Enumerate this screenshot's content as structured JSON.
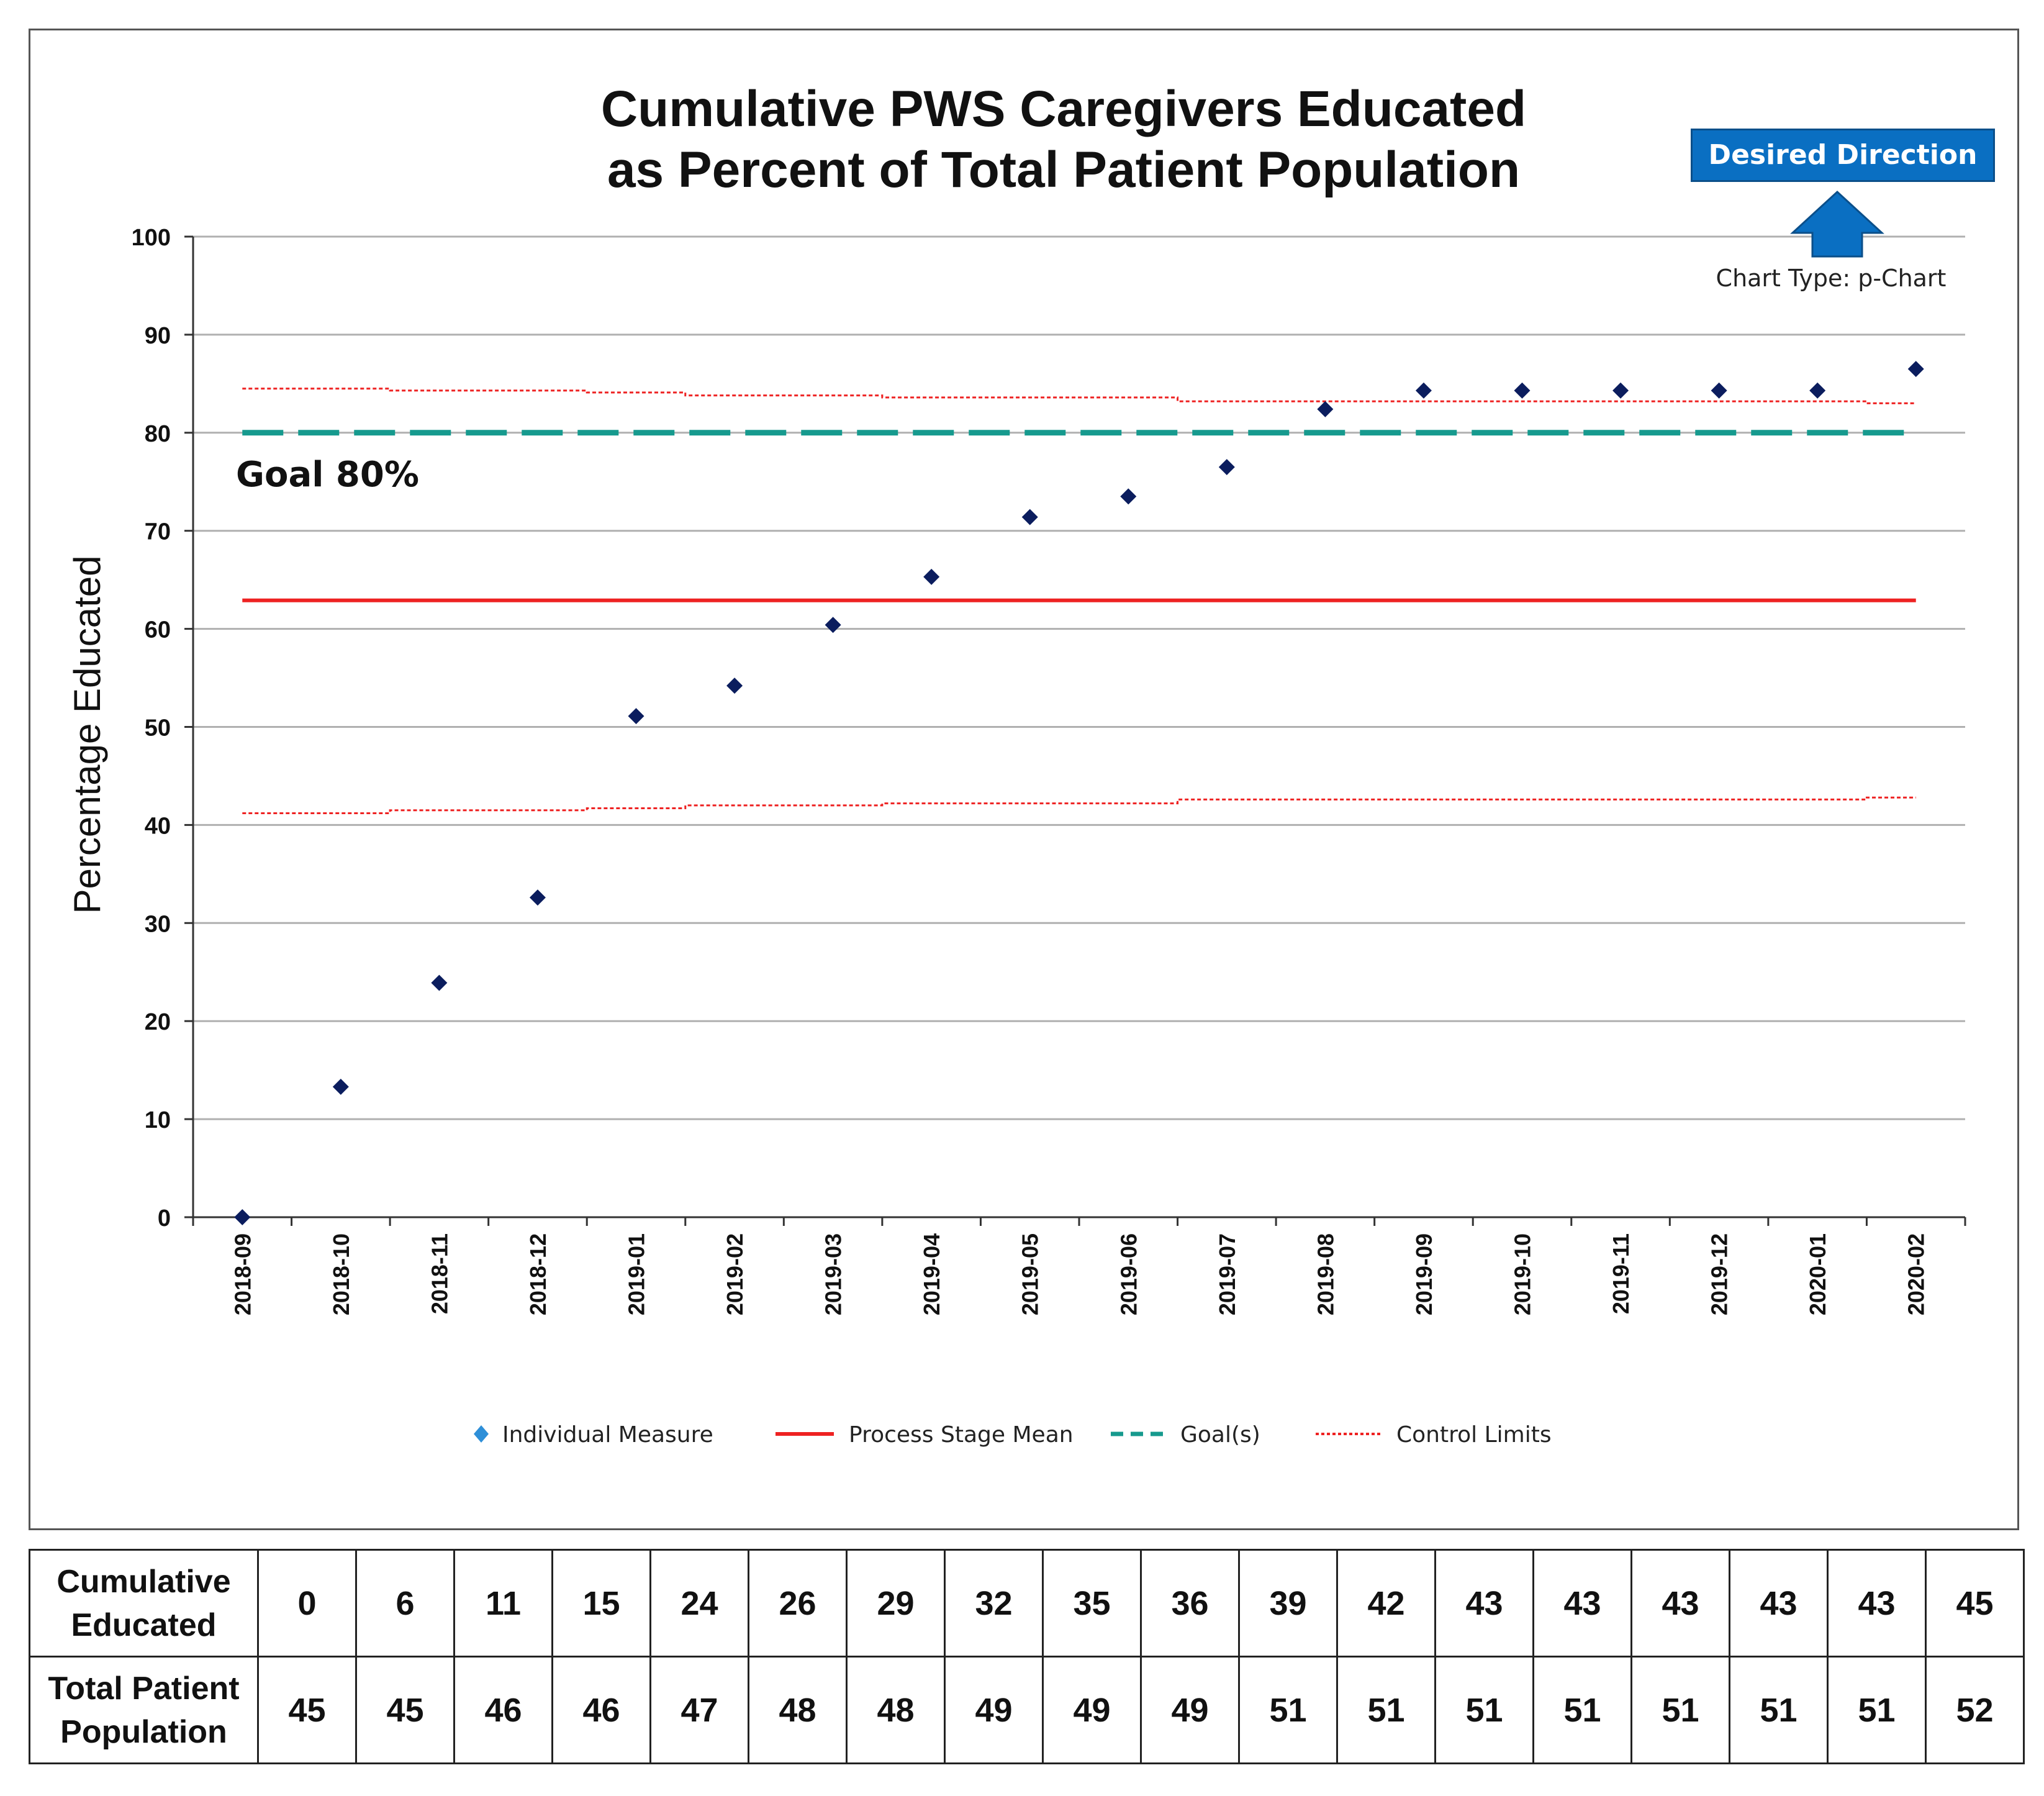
{
  "chart_data": {
    "type": "scatter",
    "title_line1": "Cumulative PWS Caregivers Educated",
    "title_line2": "as Percent of Total Patient Population",
    "ylabel": "Percentage  Educated",
    "xlabel": "",
    "ylim": [
      0,
      100
    ],
    "yticks": [
      0,
      10,
      20,
      30,
      40,
      50,
      60,
      70,
      80,
      90,
      100
    ],
    "grid": true,
    "categories": [
      "2018-09",
      "2018-10",
      "2018-11",
      "2018-12",
      "2019-01",
      "2019-02",
      "2019-03",
      "2019-04",
      "2019-05",
      "2019-06",
      "2019-07",
      "2019-08",
      "2019-09",
      "2019-10",
      "2019-11",
      "2019-12",
      "2020-01",
      "2020-02"
    ],
    "series": [
      {
        "name": "Individual Measure",
        "values": [
          0,
          13.3,
          23.9,
          32.6,
          51.1,
          54.2,
          60.4,
          65.3,
          71.4,
          73.5,
          76.5,
          82.4,
          84.3,
          84.3,
          84.3,
          84.3,
          84.3,
          86.5
        ]
      },
      {
        "name": "Process Stage Mean",
        "values": [
          62.9,
          62.9,
          62.9,
          62.9,
          62.9,
          62.9,
          62.9,
          62.9,
          62.9,
          62.9,
          62.9,
          62.9,
          62.9,
          62.9,
          62.9,
          62.9,
          62.9,
          62.9
        ]
      },
      {
        "name": "Goal(s)",
        "values": [
          80,
          80,
          80,
          80,
          80,
          80,
          80,
          80,
          80,
          80,
          80,
          80,
          80,
          80,
          80,
          80,
          80,
          80
        ]
      },
      {
        "name": "Upper Control Limit",
        "values": [
          84.5,
          84.5,
          84.3,
          84.3,
          84.1,
          83.8,
          83.8,
          83.6,
          83.6,
          83.6,
          83.2,
          83.2,
          83.2,
          83.2,
          83.2,
          83.2,
          83.2,
          83.0
        ]
      },
      {
        "name": "Lower Control Limit",
        "values": [
          41.2,
          41.2,
          41.5,
          41.5,
          41.7,
          42.0,
          42.0,
          42.2,
          42.2,
          42.2,
          42.6,
          42.6,
          42.6,
          42.6,
          42.6,
          42.6,
          42.6,
          42.8
        ]
      }
    ],
    "legend": [
      "Individual Measure",
      "Process Stage Mean",
      "Goal(s)",
      "Control Limits"
    ],
    "legend_position": "bottom",
    "annotations": {
      "goal_label": "Goal 80%",
      "desired_direction": "Desired Direction",
      "chart_type": "Chart Type: p-Chart"
    }
  },
  "table": {
    "rows": [
      {
        "label_line1": "Cumulative",
        "label_line2": "Educated",
        "values": [
          0,
          6,
          11,
          15,
          24,
          26,
          29,
          32,
          35,
          36,
          39,
          42,
          43,
          43,
          43,
          43,
          43,
          45
        ]
      },
      {
        "label_line1": "Total Patient",
        "label_line2": "Population",
        "values": [
          45,
          45,
          46,
          46,
          47,
          48,
          48,
          49,
          49,
          49,
          51,
          51,
          51,
          51,
          51,
          51,
          51,
          52
        ]
      }
    ]
  },
  "colors": {
    "point": "#0b1d5e",
    "mean": "#ee2222",
    "goal": "#169a8e",
    "limits": "#ee2222",
    "legend_marker": "#2e8fd8",
    "arrow": "#0a6fc2",
    "grid": "#b0b0b0"
  }
}
